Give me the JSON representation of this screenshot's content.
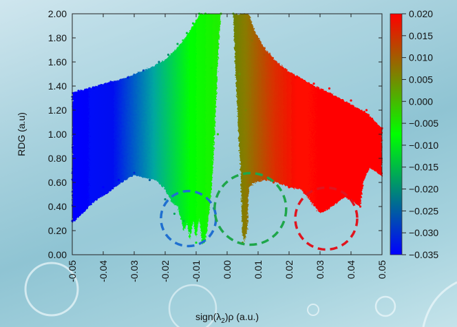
{
  "chart_data": {
    "type": "scatter",
    "title": "",
    "xlabel": "sign(λ2)ρ (a.u.)",
    "xlabel_parts": {
      "prefix": "sign(λ",
      "subscript": "2",
      "suffix": ")ρ (a.u.)"
    },
    "ylabel": "RDG (a.u)",
    "xlim": [
      -0.05,
      0.05
    ],
    "ylim": [
      0.0,
      2.0
    ],
    "x_ticks": [
      "-0.05",
      "-0.04",
      "-0.03",
      "-0.02",
      "-0.01",
      "0.00",
      "0.01",
      "0.02",
      "0.03",
      "0.04",
      "0.05"
    ],
    "y_ticks": [
      "0.00",
      "0.20",
      "0.40",
      "0.60",
      "0.80",
      "1.00",
      "1.20",
      "1.40",
      "1.60",
      "1.80",
      "2.00"
    ],
    "colorbar": {
      "range": [
        -0.035,
        0.02
      ],
      "ticks": [
        "0.020",
        "0.015",
        "0.010",
        "0.005",
        "0.000",
        "−0.005",
        "−0.010",
        "−0.015",
        "−0.020",
        "−0.025",
        "−0.030",
        "−0.035"
      ],
      "colors": [
        "#0000ff",
        "#00ff00",
        "#ff0000"
      ]
    },
    "series": [
      {
        "points": [
          [
            -0.05,
            0.28
          ],
          [
            -0.049,
            0.9
          ],
          [
            -0.048,
            1.36
          ],
          [
            -0.045,
            0.5
          ],
          [
            -0.043,
            1.38
          ],
          [
            -0.04,
            0.56
          ],
          [
            -0.038,
            1.42
          ],
          [
            -0.035,
            0.62
          ],
          [
            -0.032,
            1.47
          ],
          [
            -0.03,
            0.68
          ],
          [
            -0.027,
            1.53
          ],
          [
            -0.025,
            0.62
          ],
          [
            -0.022,
            1.6
          ],
          [
            -0.02,
            0.46
          ],
          [
            -0.019,
            1.66
          ],
          [
            -0.017,
            0.34
          ],
          [
            -0.016,
            1.75
          ],
          [
            -0.014,
            0.28
          ],
          [
            -0.013,
            1.84
          ],
          [
            -0.012,
            0.2
          ],
          [
            -0.011,
            1.92
          ],
          [
            -0.01,
            0.1
          ],
          [
            -0.009,
            2.0
          ],
          [
            -0.008,
            0.12
          ],
          [
            -0.007,
            2.0
          ],
          [
            -0.005,
            1.55
          ],
          [
            -0.003,
            1.0
          ],
          [
            -0.002,
            2.0
          ],
          [
            0.002,
            2.0
          ],
          [
            0.004,
            1.5
          ],
          [
            0.005,
            0.1
          ],
          [
            0.006,
            1.2
          ],
          [
            0.007,
            0.58
          ],
          [
            0.008,
            1.78
          ],
          [
            0.01,
            0.62
          ],
          [
            0.012,
            1.66
          ],
          [
            0.015,
            0.6
          ],
          [
            0.018,
            1.55
          ],
          [
            0.02,
            0.56
          ],
          [
            0.022,
            1.47
          ],
          [
            0.025,
            0.52
          ],
          [
            0.028,
            1.42
          ],
          [
            0.03,
            0.4
          ],
          [
            0.033,
            1.38
          ],
          [
            0.035,
            0.44
          ],
          [
            0.04,
            1.28
          ],
          [
            0.043,
            0.4
          ],
          [
            0.045,
            1.2
          ],
          [
            0.048,
            0.7
          ],
          [
            0.05,
            1.05
          ]
        ]
      }
    ],
    "annotations": [
      {
        "shape": "dashed-circle",
        "color": "#1f6fd0",
        "center": [
          -0.0125,
          0.3
        ],
        "label": ""
      },
      {
        "shape": "dashed-circle",
        "color": "#1ea64a",
        "center": [
          0.0075,
          0.38
        ],
        "label": ""
      },
      {
        "shape": "dashed-circle",
        "color": "#e0141e",
        "center": [
          0.032,
          0.3
        ],
        "label": ""
      }
    ],
    "grid": false,
    "legend": "none"
  }
}
